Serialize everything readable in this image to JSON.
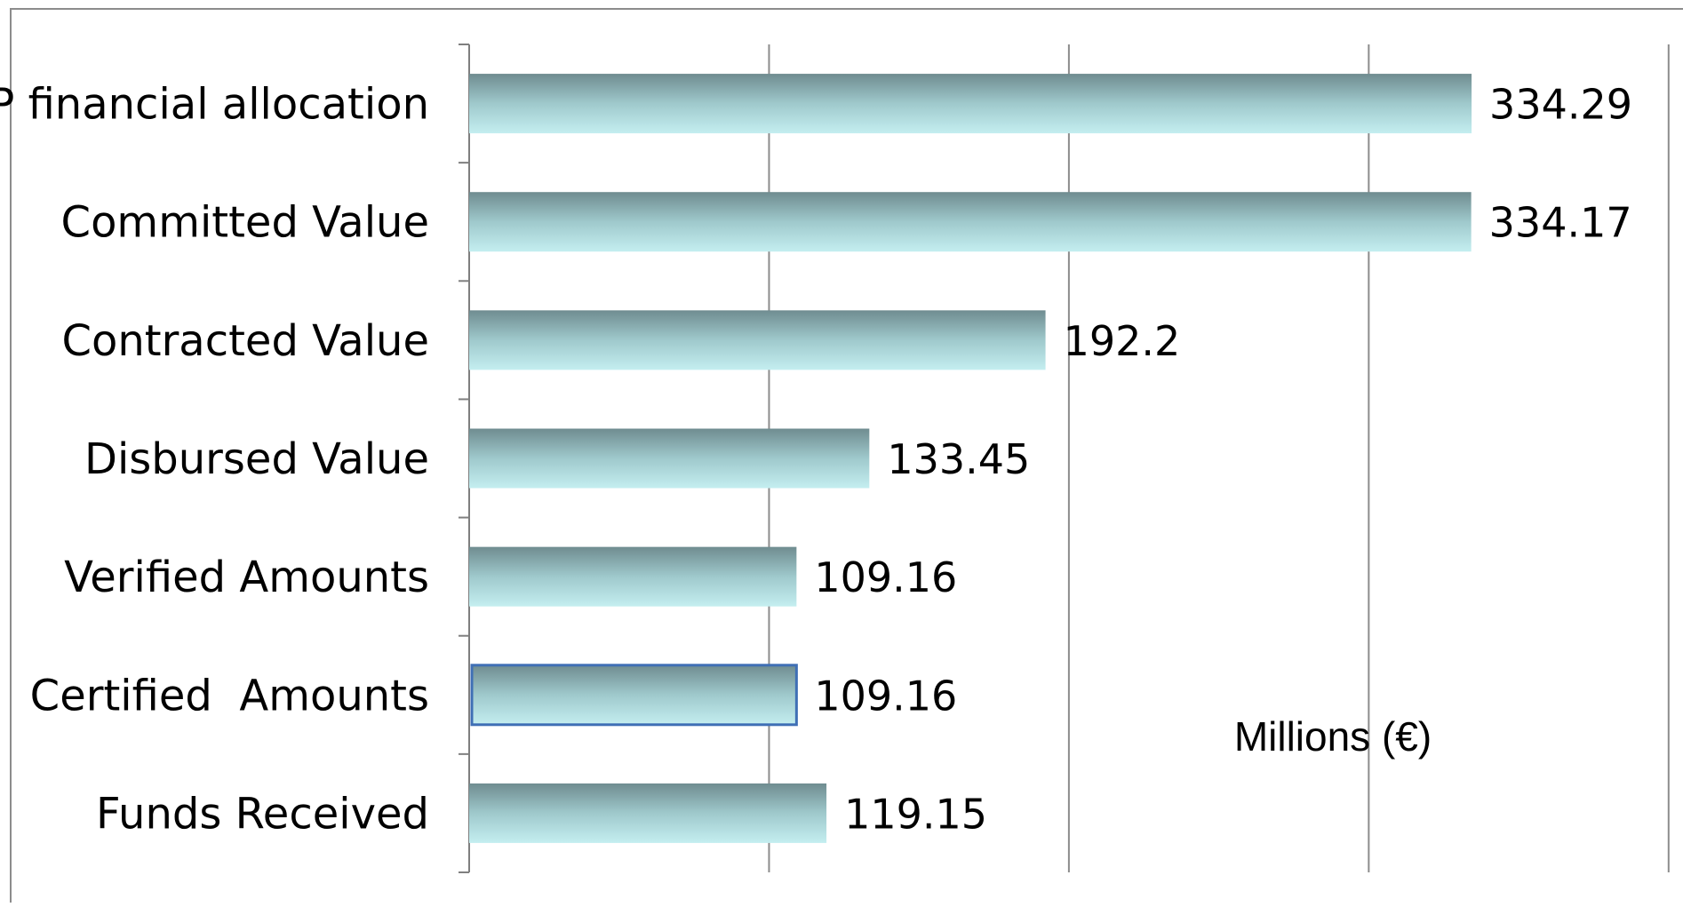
{
  "chart_data": {
    "type": "bar",
    "orientation": "horizontal",
    "categories": [
      "OP financial allocation",
      "Committed Value",
      "Contracted Value",
      "Disbursed Value",
      "Verified Amounts",
      "Certified  Amounts",
      "Funds Received"
    ],
    "values": [
      334.29,
      334.17,
      192.2,
      133.45,
      109.16,
      109.16,
      119.15
    ],
    "value_labels": [
      "334.29",
      "334.17",
      "192.2",
      "133.45",
      "109.16",
      "109.16",
      "119.15"
    ],
    "unit_annotation": "Millions (€)",
    "title": "",
    "xlabel": "",
    "ylabel": "",
    "xlim": [
      0,
      400
    ],
    "grid": true,
    "legend": "none",
    "colors": {
      "bar_top": "#6f8c90",
      "bar_mid": "#9fc9cc",
      "bar_bottom": "#c4eef0",
      "gridline": "#8c8c8c",
      "axis": "#7f7f7f",
      "highlight_border": "#3f6fb5",
      "frame": "#8c8c8c"
    }
  }
}
